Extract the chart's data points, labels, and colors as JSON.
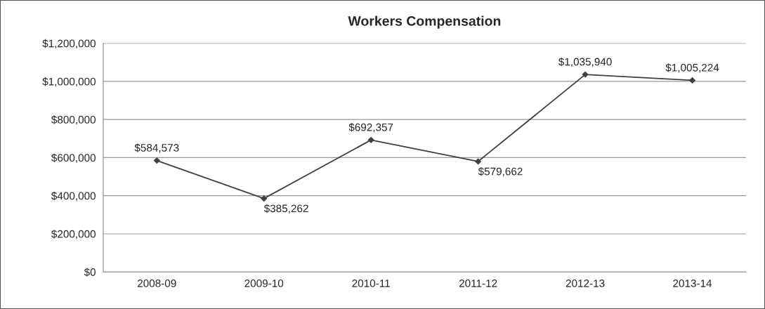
{
  "chart_data": {
    "type": "line",
    "title": "Workers Compensation",
    "categories": [
      "2008-09",
      "2009-10",
      "2010-11",
      "2011-12",
      "2012-13",
      "2013-14"
    ],
    "series": [
      {
        "color": "#404040",
        "values": [
          584573,
          385262,
          692357,
          579662,
          1035940,
          1005224
        ],
        "value_labels": [
          "$584,573",
          "$385,262",
          "$692,357",
          "$579,662",
          "$1,035,940",
          "$1,005,224"
        ]
      }
    ],
    "ylim": [
      0,
      1200000
    ],
    "yticks": [
      {
        "value": 0,
        "label": "$0"
      },
      {
        "value": 200000,
        "label": "$200,000"
      },
      {
        "value": 400000,
        "label": "$400,000"
      },
      {
        "value": 600000,
        "label": "$600,000"
      },
      {
        "value": 800000,
        "label": "$800,000"
      },
      {
        "value": 1000000,
        "label": "$1,000,000"
      },
      {
        "value": 1200000,
        "label": "$1,200,000"
      }
    ],
    "grid": "y",
    "marker": "diamond",
    "line_style": "solid",
    "legend": false
  }
}
